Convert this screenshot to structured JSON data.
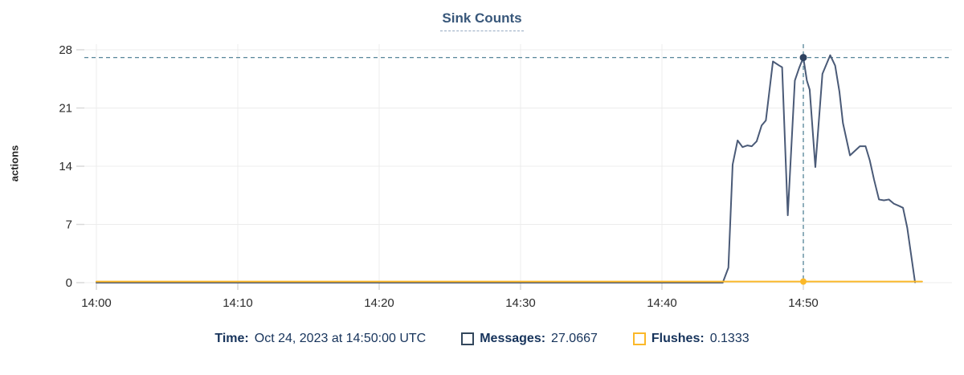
{
  "title": "Sink Counts",
  "chart_data": {
    "type": "line",
    "title": "Sink Counts",
    "xlabel": "",
    "ylabel": "actions",
    "x_start_label": "14:00",
    "x_ticks": [
      {
        "minutes": 0,
        "label": "14:00"
      },
      {
        "minutes": 10,
        "label": "14:10"
      },
      {
        "minutes": 20,
        "label": "14:20"
      },
      {
        "minutes": 30,
        "label": "14:30"
      },
      {
        "minutes": 40,
        "label": "14:40"
      },
      {
        "minutes": 50,
        "label": "14:50"
      }
    ],
    "y_ticks": [
      0,
      7,
      14,
      21,
      28
    ],
    "ylim": [
      0,
      28
    ],
    "xlim_minutes": [
      -0.85,
      60.5
    ],
    "grid": true,
    "legend_position": "bottom",
    "series": [
      {
        "name": "Messages",
        "color": "#4a5a77",
        "points": [
          [
            0,
            0
          ],
          [
            44.3,
            0
          ],
          [
            44.7,
            1.8
          ],
          [
            45.0,
            14.2
          ],
          [
            45.35,
            17.1
          ],
          [
            45.7,
            16.3
          ],
          [
            46.05,
            16.5
          ],
          [
            46.35,
            16.4
          ],
          [
            46.7,
            17.0
          ],
          [
            47.05,
            18.9
          ],
          [
            47.35,
            19.5
          ],
          [
            47.85,
            26.6
          ],
          [
            48.3,
            26.1
          ],
          [
            48.5,
            25.9
          ],
          [
            48.9,
            8.1
          ],
          [
            49.4,
            24.3
          ],
          [
            49.7,
            25.8
          ],
          [
            50.0,
            27.0667
          ],
          [
            50.25,
            24.3
          ],
          [
            50.45,
            23.2
          ],
          [
            50.85,
            13.9
          ],
          [
            51.35,
            25.1
          ],
          [
            51.9,
            27.35
          ],
          [
            52.25,
            26.1
          ],
          [
            52.55,
            23.0
          ],
          [
            52.8,
            19.2
          ],
          [
            53.3,
            15.3
          ],
          [
            54.0,
            16.4
          ],
          [
            54.4,
            16.4
          ],
          [
            54.7,
            14.7
          ],
          [
            55.0,
            12.4
          ],
          [
            55.35,
            10.0
          ],
          [
            55.7,
            9.9
          ],
          [
            56.05,
            10.0
          ],
          [
            56.4,
            9.5
          ],
          [
            56.8,
            9.2
          ],
          [
            57.05,
            9.0
          ],
          [
            57.35,
            6.6
          ],
          [
            57.9,
            0.05
          ]
        ]
      },
      {
        "name": "Flushes",
        "color": "#fbb829",
        "points": [
          [
            0,
            0.13
          ],
          [
            58.4,
            0.13
          ]
        ]
      }
    ],
    "crosshair": {
      "time_minutes": 50,
      "time_label": "Oct 24, 2023 at 14:50:00 UTC",
      "messages_value": 27.0667,
      "flushes_value": 0.1333,
      "line_color": "#44788e",
      "messages_marker_color": "#2e4260",
      "flushes_marker_color": "#fbb829"
    },
    "colors": {
      "gridline": "#ececec",
      "tick_stub": "#d9d9d9",
      "tick_text": "#2b2b2b"
    }
  },
  "legend": {
    "time": {
      "label": "Time:",
      "value": "Oct 24, 2023 at 14:50:00 UTC"
    },
    "messages": {
      "label": "Messages:",
      "value": "27.0667",
      "color": "#33475c"
    },
    "flushes": {
      "label": "Flushes:",
      "value": "0.1333",
      "color": "#fbb829"
    }
  }
}
